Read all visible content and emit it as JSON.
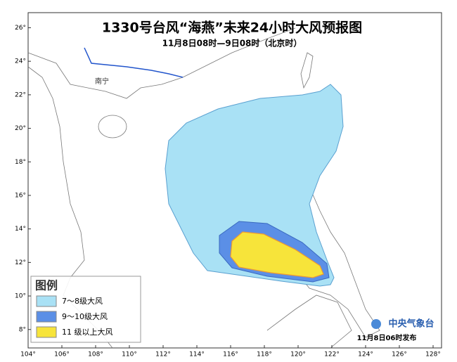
{
  "title": "1330号台风“海燕”未来24小时大风预报图",
  "subtitle": "11月8日08时—9日08时（北京时）",
  "map": {
    "xlim": [
      104,
      128.5
    ],
    "ylim": [
      6.9,
      26.9
    ],
    "lon_ticks": [
      {
        "value": 104,
        "label": "104°"
      },
      {
        "value": 106,
        "label": "106°"
      },
      {
        "value": 108,
        "label": "108°"
      },
      {
        "value": 110,
        "label": "110°"
      },
      {
        "value": 112,
        "label": "112°"
      },
      {
        "value": 114,
        "label": "114°"
      },
      {
        "value": 116,
        "label": "116°"
      },
      {
        "value": 118,
        "label": "118°"
      },
      {
        "value": 120,
        "label": "120°"
      },
      {
        "value": 122,
        "label": "122°"
      },
      {
        "value": 124,
        "label": "124°"
      },
      {
        "value": 126,
        "label": "126°"
      },
      {
        "value": 128,
        "label": "128°"
      }
    ],
    "lat_ticks": [
      {
        "value": 8,
        "label": "8°"
      },
      {
        "value": 10,
        "label": "10°"
      },
      {
        "value": 12,
        "label": "12°"
      },
      {
        "value": 14,
        "label": "14°"
      },
      {
        "value": 16,
        "label": "16°"
      },
      {
        "value": 18,
        "label": "18°"
      },
      {
        "value": 20,
        "label": "20°"
      },
      {
        "value": 22,
        "label": "22°"
      },
      {
        "value": 24,
        "label": "24°"
      },
      {
        "value": 26,
        "label": "26°"
      }
    ],
    "places": [
      "南宁"
    ]
  },
  "legend": {
    "title": "图例",
    "items": [
      {
        "label": "7～8级大风",
        "color": "#a9e1f5"
      },
      {
        "label": "9～10级大风",
        "color": "#5b8fe6"
      },
      {
        "label": "11 级以上大风",
        "color": "#f7e43a"
      }
    ]
  },
  "footer": {
    "logo": "中央气象台",
    "issued": "11月8日06时发布"
  }
}
